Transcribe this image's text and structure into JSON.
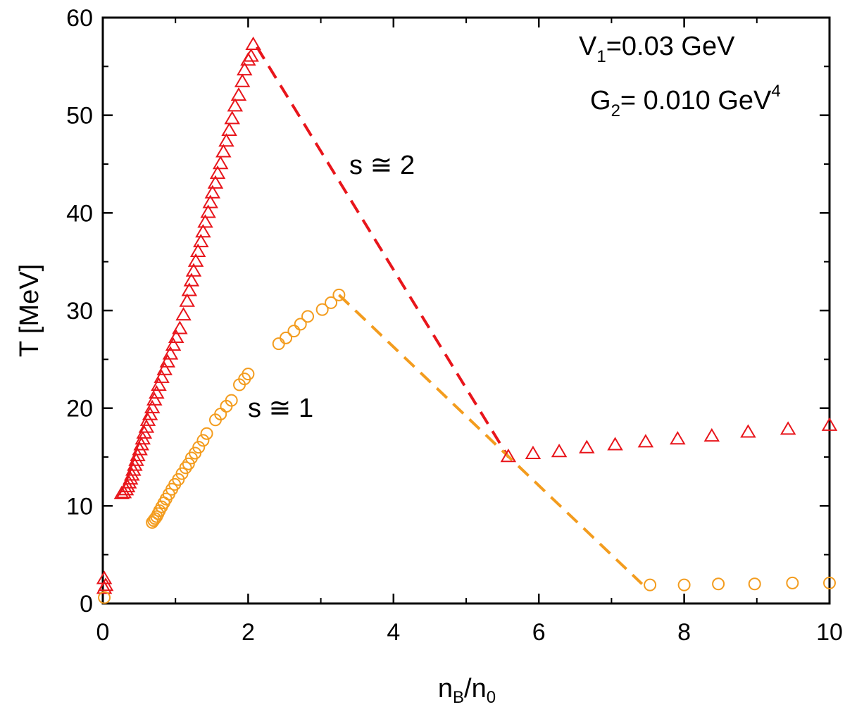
{
  "chart_data": {
    "type": "scatter",
    "title": "",
    "xlabel": {
      "main": "n",
      "sub1": "B",
      "slash": "/n",
      "sub2": "0"
    },
    "ylabel": "T [MeV]",
    "xlim": [
      0,
      10
    ],
    "ylim": [
      0,
      60
    ],
    "xticks": [
      0,
      2,
      4,
      6,
      8,
      10
    ],
    "yticks": [
      0,
      10,
      20,
      30,
      40,
      50,
      60
    ],
    "xtick_labels": [
      "0",
      "2",
      "4",
      "6",
      "8",
      "10"
    ],
    "ytick_labels": [
      "0",
      "10",
      "20",
      "30",
      "40",
      "50",
      "60"
    ],
    "grid": false,
    "annotations": {
      "v1": {
        "main": "V",
        "sub": "1",
        "rest": "=0.03 GeV"
      },
      "g2": {
        "main": "G",
        "sub": "2",
        "rest": "= 0.010 GeV",
        "sup": "4"
      },
      "s2": "s ≅ 2",
      "s1": "s ≅ 1"
    },
    "series": [
      {
        "name": "s ≅ 2",
        "marker": "triangle",
        "color": "#e8151b",
        "points": [
          [
            0.02,
            2.5
          ],
          [
            0.02,
            1.5
          ],
          [
            0.04,
            1.8
          ],
          [
            0.26,
            11.2
          ],
          [
            0.29,
            11.3
          ],
          [
            0.32,
            11.6
          ],
          [
            0.34,
            11.9
          ],
          [
            0.36,
            12.3
          ],
          [
            0.38,
            12.7
          ],
          [
            0.4,
            13.1
          ],
          [
            0.42,
            13.6
          ],
          [
            0.44,
            14.1
          ],
          [
            0.46,
            14.6
          ],
          [
            0.48,
            15.1
          ],
          [
            0.51,
            15.7
          ],
          [
            0.53,
            16.2
          ],
          [
            0.55,
            16.8
          ],
          [
            0.57,
            17.4
          ],
          [
            0.6,
            18.0
          ],
          [
            0.62,
            18.7
          ],
          [
            0.65,
            19.3
          ],
          [
            0.68,
            20.0
          ],
          [
            0.71,
            20.8
          ],
          [
            0.74,
            21.5
          ],
          [
            0.77,
            22.3
          ],
          [
            0.81,
            23.1
          ],
          [
            0.85,
            23.9
          ],
          [
            0.89,
            24.7
          ],
          [
            0.93,
            25.5
          ],
          [
            0.97,
            26.4
          ],
          [
            1.01,
            27.2
          ],
          [
            1.06,
            28.1
          ],
          [
            1.11,
            29.5
          ],
          [
            1.16,
            30.9
          ],
          [
            1.19,
            32.0
          ],
          [
            1.22,
            33.0
          ],
          [
            1.25,
            34.0
          ],
          [
            1.28,
            35.0
          ],
          [
            1.31,
            36.0
          ],
          [
            1.35,
            37.0
          ],
          [
            1.38,
            38.0
          ],
          [
            1.41,
            39.0
          ],
          [
            1.45,
            40.0
          ],
          [
            1.48,
            41.0
          ],
          [
            1.51,
            42.0
          ],
          [
            1.55,
            43.0
          ],
          [
            1.58,
            44.0
          ],
          [
            1.62,
            45.0
          ],
          [
            1.66,
            46.2
          ],
          [
            1.7,
            47.3
          ],
          [
            1.74,
            48.4
          ],
          [
            1.78,
            49.6
          ],
          [
            1.82,
            50.9
          ],
          [
            1.87,
            52.0
          ],
          [
            1.92,
            53.4
          ],
          [
            1.95,
            54.6
          ],
          [
            2.0,
            55.6
          ],
          [
            2.04,
            56.0
          ],
          [
            2.07,
            57.2
          ],
          [
            5.58,
            15.0
          ],
          [
            5.92,
            15.3
          ],
          [
            6.28,
            15.5
          ],
          [
            6.66,
            15.9
          ],
          [
            7.05,
            16.2
          ],
          [
            7.47,
            16.5
          ],
          [
            7.91,
            16.8
          ],
          [
            8.38,
            17.1
          ],
          [
            8.88,
            17.5
          ],
          [
            9.43,
            17.8
          ],
          [
            10.0,
            18.2
          ]
        ]
      },
      {
        "name": "s ≅ 1",
        "marker": "circle",
        "color": "#f39c1e",
        "points": [
          [
            0.02,
            0.6
          ],
          [
            0.68,
            8.3
          ],
          [
            0.7,
            8.5
          ],
          [
            0.72,
            8.7
          ],
          [
            0.74,
            8.9
          ],
          [
            0.76,
            9.2
          ],
          [
            0.78,
            9.5
          ],
          [
            0.81,
            9.9
          ],
          [
            0.84,
            10.3
          ],
          [
            0.87,
            10.7
          ],
          [
            0.91,
            11.2
          ],
          [
            0.95,
            11.7
          ],
          [
            0.99,
            12.2
          ],
          [
            1.04,
            12.7
          ],
          [
            1.09,
            13.3
          ],
          [
            1.14,
            13.9
          ],
          [
            1.18,
            14.3
          ],
          [
            1.22,
            14.9
          ],
          [
            1.27,
            15.4
          ],
          [
            1.32,
            16.0
          ],
          [
            1.38,
            16.7
          ],
          [
            1.43,
            17.4
          ],
          [
            1.55,
            18.8
          ],
          [
            1.62,
            19.4
          ],
          [
            1.7,
            20.2
          ],
          [
            1.77,
            20.8
          ],
          [
            1.88,
            22.4
          ],
          [
            1.95,
            23.0
          ],
          [
            2.0,
            23.5
          ],
          [
            2.42,
            26.6
          ],
          [
            2.52,
            27.2
          ],
          [
            2.63,
            27.9
          ],
          [
            2.72,
            28.6
          ],
          [
            2.82,
            29.4
          ],
          [
            3.02,
            30.1
          ],
          [
            3.14,
            30.8
          ],
          [
            3.25,
            31.6
          ],
          [
            7.53,
            1.9
          ],
          [
            8.0,
            1.9
          ],
          [
            8.47,
            2.0
          ],
          [
            8.97,
            2.0
          ],
          [
            9.49,
            2.1
          ],
          [
            10.0,
            2.1
          ]
        ]
      }
    ],
    "lines": [
      {
        "name": "s ≅ 2 dashed",
        "color": "#e8151b",
        "points": [
          [
            2.12,
            57.0
          ],
          [
            5.58,
            15.0
          ]
        ]
      },
      {
        "name": "s ≅ 1 dashed",
        "color": "#f39c1e",
        "points": [
          [
            3.25,
            31.6
          ],
          [
            7.42,
            2.0
          ]
        ]
      }
    ]
  }
}
